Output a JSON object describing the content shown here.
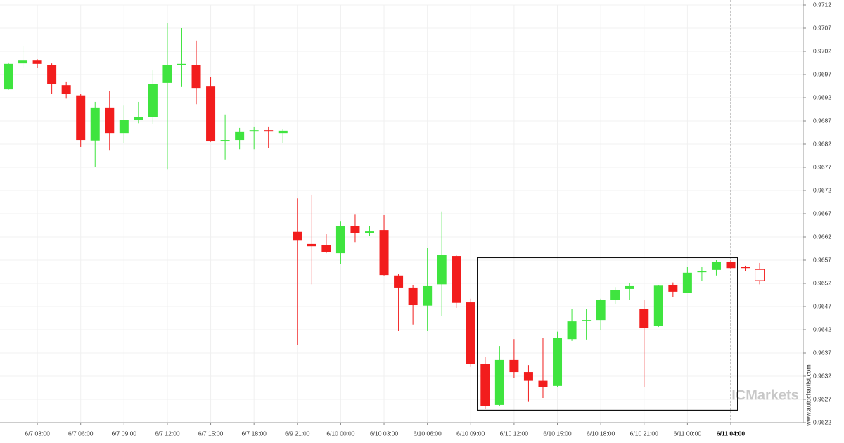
{
  "chart_data": {
    "type": "candlestick",
    "categories": [
      null,
      null,
      "6/7 03:00",
      null,
      null,
      "6/7 06:00",
      null,
      null,
      "6/7 09:00",
      null,
      null,
      "6/7 12:00",
      null,
      null,
      "6/7 15:00",
      null,
      null,
      "6/7 18:00",
      null,
      null,
      "6/9 21:00",
      null,
      null,
      "6/10 00:00",
      null,
      null,
      "6/10 03:00",
      null,
      null,
      "6/10 06:00",
      null,
      null,
      "6/10 09:00",
      null,
      null,
      "6/10 12:00",
      null,
      null,
      "6/10 15:00",
      null,
      null,
      "6/10 18:00",
      null,
      null,
      "6/10 21:00",
      null,
      null,
      "6/11 00:00",
      null,
      null,
      "6/11 04:00",
      null,
      null
    ],
    "open": [
      0.96938,
      0.96994,
      0.97,
      0.96991,
      0.96947,
      0.96925,
      0.96828,
      0.96899,
      0.96844,
      0.96873,
      0.96878,
      0.96952,
      0.96991,
      0.96991,
      0.96944,
      0.96826,
      0.96829,
      0.96847,
      0.9685,
      0.96844,
      0.96631,
      0.96605,
      0.96603,
      0.96585,
      0.96643,
      0.96628,
      0.96635,
      0.96537,
      0.96511,
      0.96472,
      0.96518,
      0.96579,
      0.96479,
      0.96347,
      0.96258,
      0.96355,
      0.96329,
      0.9631,
      0.96299,
      0.964,
      0.9644,
      0.96441,
      0.96484,
      0.96508,
      0.96464,
      0.96428,
      0.96517,
      0.965,
      0.96544,
      0.96549,
      0.96567,
      0.96555,
      0.9655
    ],
    "high": [
      0.96996,
      0.97031,
      0.97003,
      0.96994,
      0.96955,
      0.96929,
      0.96911,
      0.96934,
      0.96903,
      0.96911,
      0.96979,
      0.97081,
      0.9707,
      0.97043,
      0.96964,
      0.96884,
      0.96855,
      0.96858,
      0.96858,
      0.96853,
      0.96703,
      0.96711,
      0.96626,
      0.96653,
      0.96668,
      0.96643,
      0.96667,
      0.9654,
      0.96517,
      0.96596,
      0.96675,
      0.96582,
      0.96487,
      0.96361,
      0.96385,
      0.964,
      0.96344,
      0.96403,
      0.96416,
      0.96464,
      0.96464,
      0.96487,
      0.96512,
      0.9652,
      0.96485,
      0.96517,
      0.96522,
      0.96556,
      0.96555,
      0.9657,
      0.9657,
      0.96558,
      0.96564
    ],
    "low": [
      0.96937,
      0.96985,
      0.96985,
      0.96929,
      0.96918,
      0.96814,
      0.9677,
      0.96806,
      0.96822,
      0.96865,
      0.96864,
      0.96765,
      0.96943,
      0.96906,
      0.96825,
      0.96787,
      0.96809,
      0.96809,
      0.96812,
      0.96822,
      0.96388,
      0.96518,
      0.96585,
      0.96561,
      0.96609,
      0.96622,
      0.96537,
      0.96417,
      0.96431,
      0.96417,
      0.96449,
      0.96467,
      0.9634,
      0.96249,
      0.96255,
      0.96316,
      0.96266,
      0.96273,
      0.96297,
      0.96396,
      0.96399,
      0.96419,
      0.96476,
      0.96484,
      0.96297,
      0.96426,
      0.9649,
      0.96499,
      0.96526,
      0.96537,
      0.96552,
      0.96546,
      0.96518
    ],
    "close": [
      0.96993,
      0.97,
      0.96993,
      0.9695,
      0.96929,
      0.96829,
      0.96899,
      0.96844,
      0.96873,
      0.96879,
      0.9695,
      0.9699,
      0.96993,
      0.96941,
      0.96826,
      0.96829,
      0.96846,
      0.9685,
      0.96847,
      0.96849,
      0.96612,
      0.966,
      0.96587,
      0.96643,
      0.96629,
      0.96632,
      0.96538,
      0.96511,
      0.96473,
      0.96514,
      0.96581,
      0.96478,
      0.96346,
      0.96255,
      0.96355,
      0.96329,
      0.9631,
      0.96297,
      0.96402,
      0.96438,
      0.96441,
      0.96484,
      0.96505,
      0.96514,
      0.96423,
      0.96515,
      0.96502,
      0.96543,
      0.96547,
      0.96567,
      0.96553,
      0.96553,
      0.96526
    ],
    "up_color": "#3fe43f",
    "down_color": "#f21d1d",
    "ylim": [
      0.9622,
      0.9712
    ],
    "yticks": [
      0.9622,
      0.9627,
      0.9632,
      0.9637,
      0.9642,
      0.9647,
      0.9652,
      0.9657,
      0.9662,
      0.9667,
      0.9672,
      0.9677,
      0.9682,
      0.9687,
      0.9692,
      0.9697,
      0.9702,
      0.9707,
      0.9712
    ],
    "grid": true,
    "range_box": {
      "top": 0.96576,
      "bottom": 0.96246
    },
    "watermark": {
      "logo": "ICMarkets",
      "site": "www.autochartist.com"
    }
  }
}
